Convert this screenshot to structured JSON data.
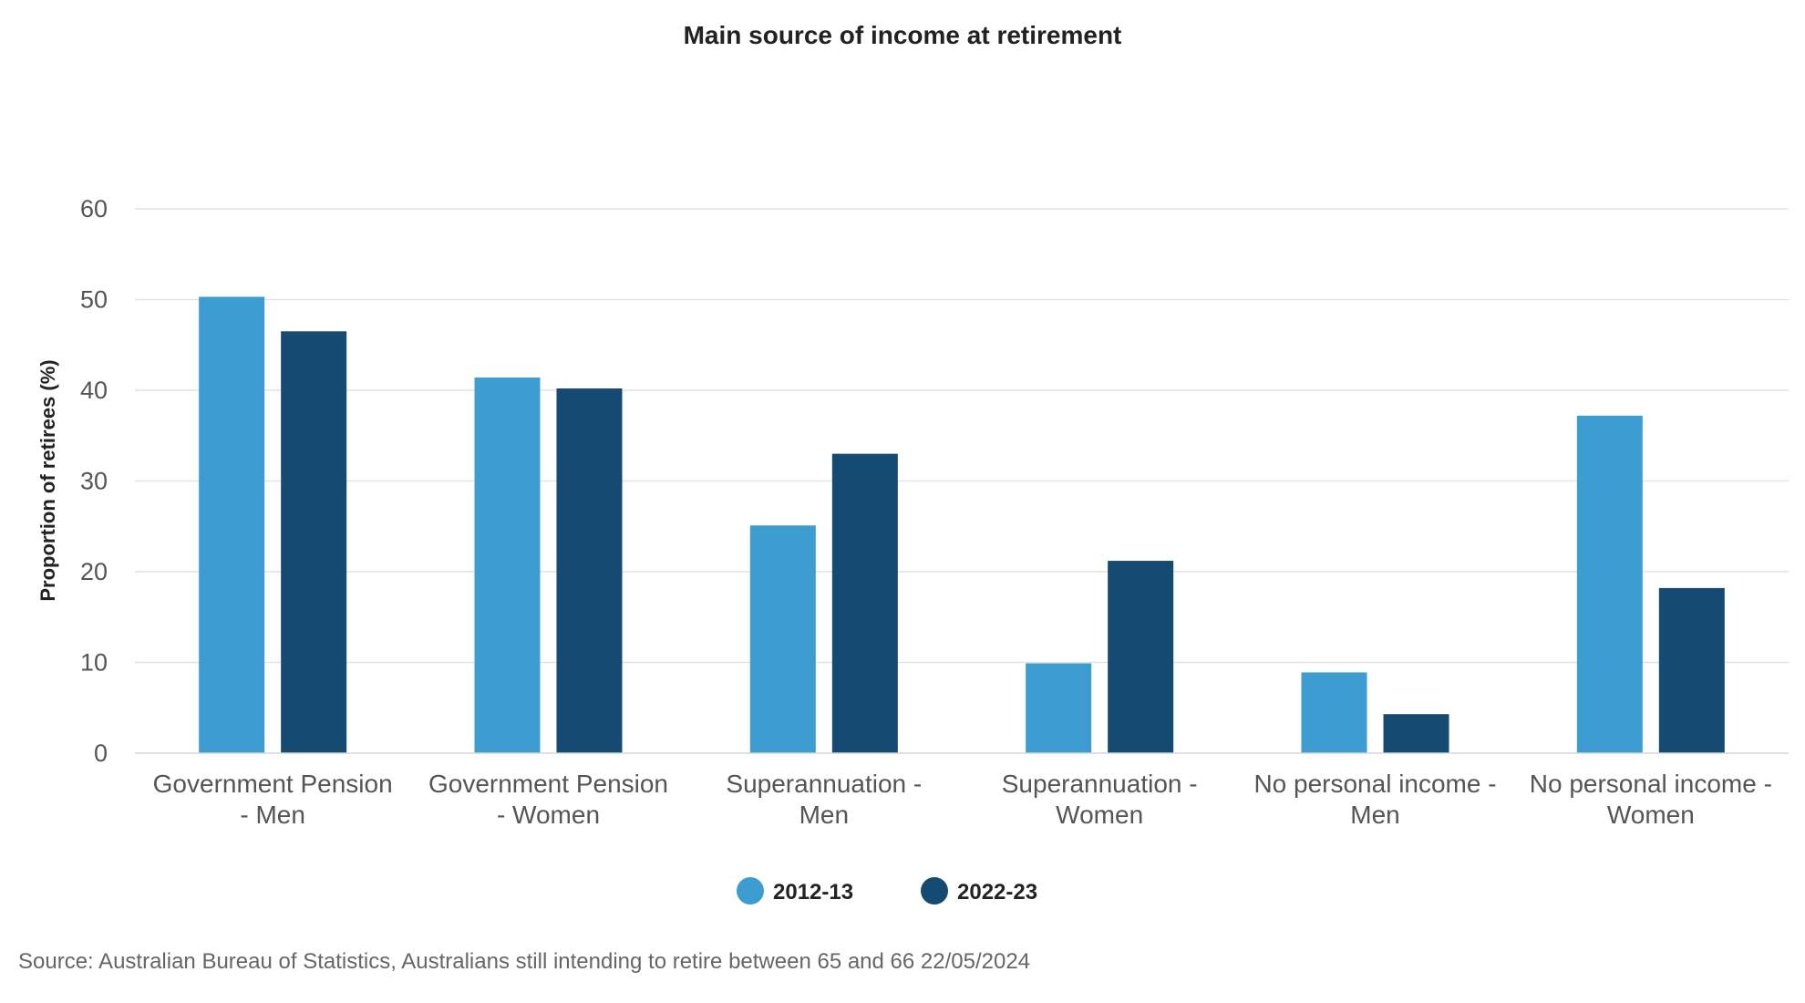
{
  "chart_data": {
    "type": "bar",
    "title": "Main source of income at retirement",
    "xlabel": "",
    "ylabel": "Proportion of retirees (%)",
    "ylim": [
      0,
      60
    ],
    "yticks": [
      0,
      10,
      20,
      30,
      40,
      50,
      60
    ],
    "grid": true,
    "legend_position": "bottom-center",
    "categories": [
      [
        "Government Pension",
        "- Men"
      ],
      [
        "Government Pension",
        "- Women"
      ],
      [
        "Superannuation -",
        "Men"
      ],
      [
        "Superannuation -",
        "Women"
      ],
      [
        "No personal income -",
        "Men"
      ],
      [
        "No personal income -",
        "Women"
      ]
    ],
    "series": [
      {
        "name": "2012-13",
        "color": "#3d9dd0",
        "values": [
          50.3,
          41.4,
          25.1,
          9.9,
          8.9,
          37.2
        ]
      },
      {
        "name": "2022-23",
        "color": "#154a72",
        "values": [
          46.5,
          40.2,
          33.0,
          21.2,
          4.3,
          18.2
        ]
      }
    ],
    "source": "Source: Australian Bureau of Statistics, Australians still intending to retire between 65 and 66 22/05/2024"
  }
}
